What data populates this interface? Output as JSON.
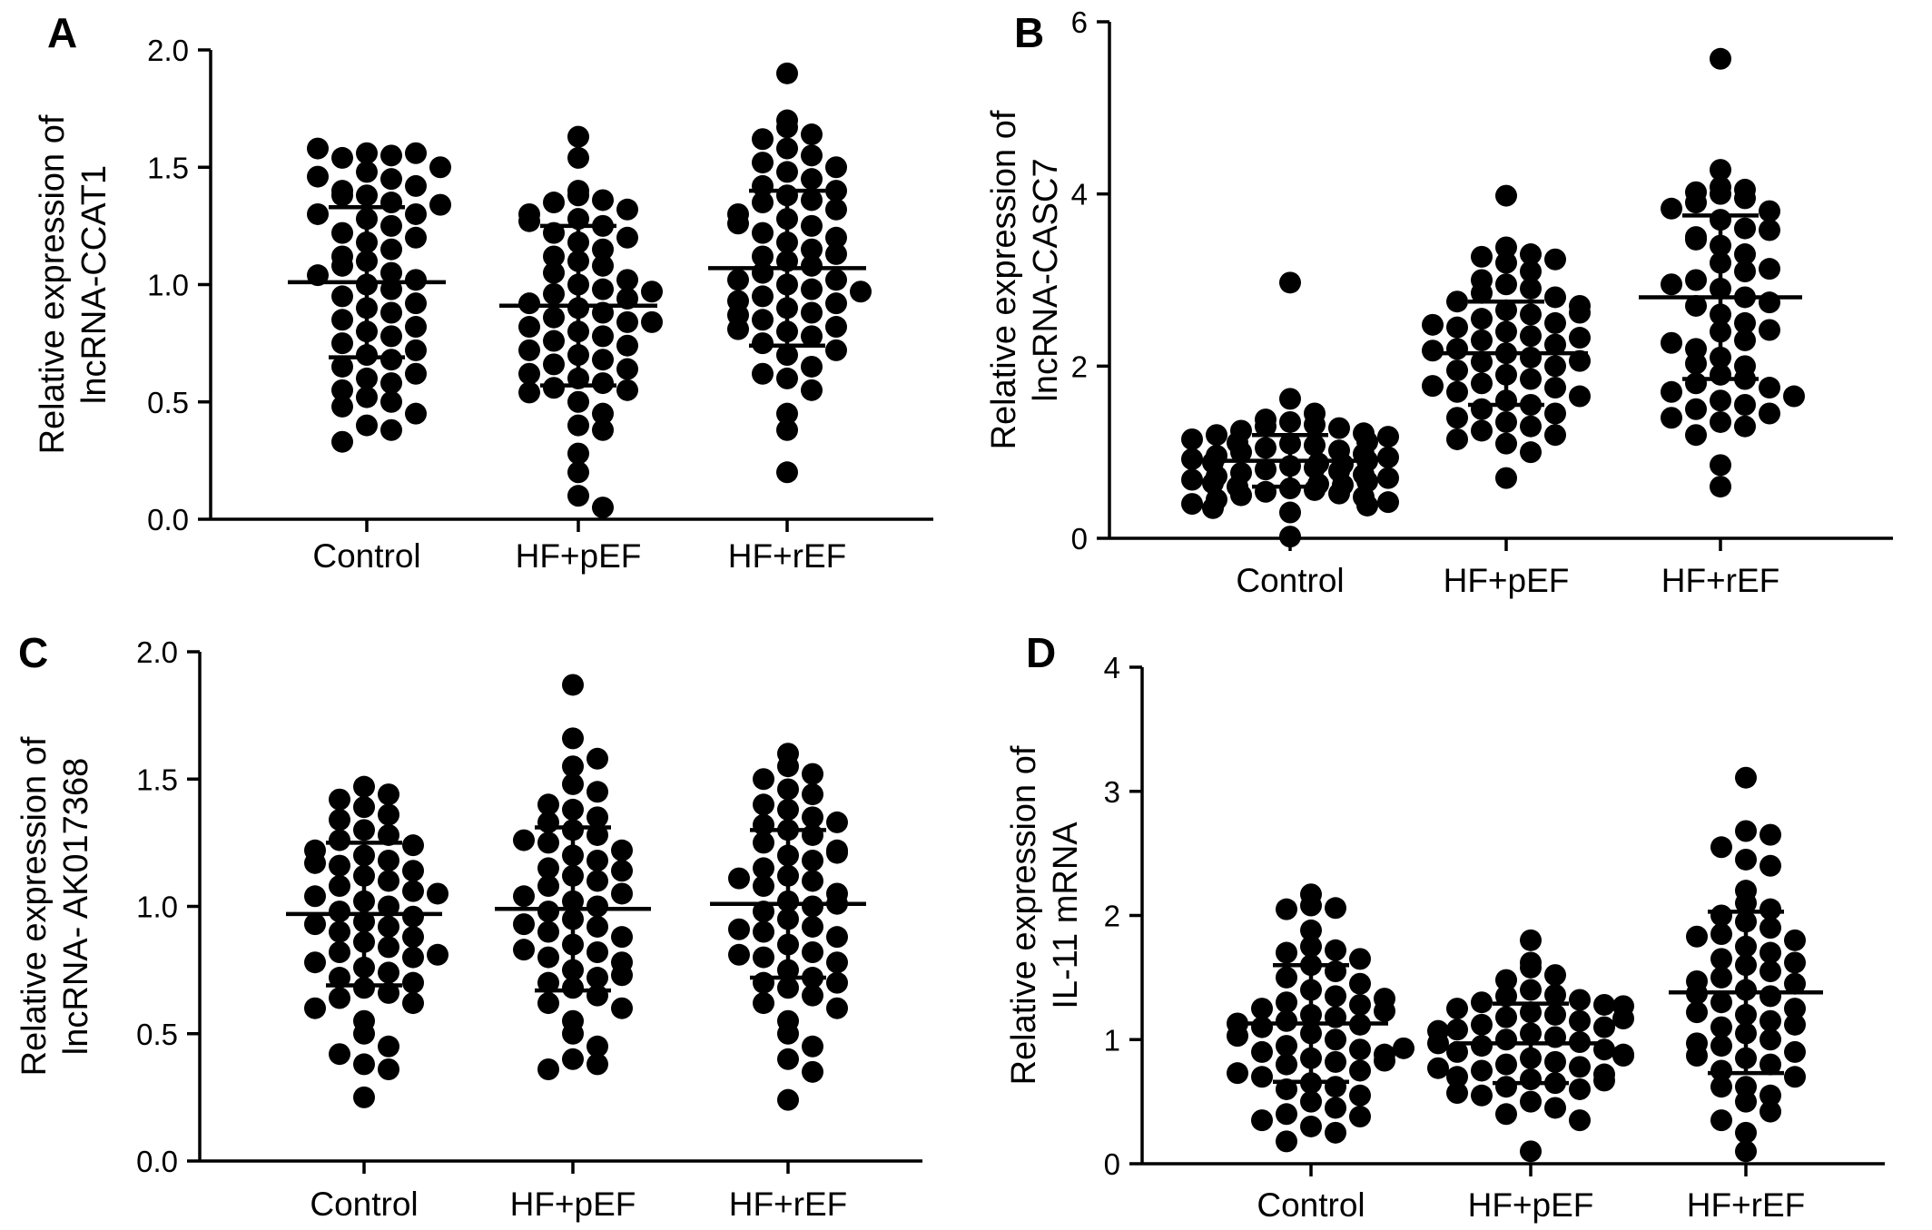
{
  "chart_data": [
    {
      "type": "scatter",
      "panel": "A",
      "ylabel": [
        "Relative expression of",
        "lncRNA-CCAT1"
      ],
      "xlabel": "",
      "categories": [
        "Control",
        "HF+pEF",
        "HF+rEF"
      ],
      "ylim": [
        0,
        2.0
      ],
      "yticks": [
        "0.0",
        "0.5",
        "1.0",
        "1.5",
        "2.0"
      ],
      "mean": [
        1.01,
        0.91,
        1.07
      ],
      "sd": [
        0.32,
        0.34,
        0.33
      ],
      "series": [
        {
          "values": [
            1.56,
            1.55,
            1.54,
            1.56,
            1.58,
            1.48,
            1.45,
            1.4,
            1.38,
            1.35,
            1.42,
            1.38,
            1.3,
            1.28,
            1.25,
            1.3,
            1.22,
            1.18,
            1.15,
            1.2,
            1.12,
            1.1,
            1.05,
            1.08,
            1.02,
            1.0,
            0.98,
            1.04,
            0.95,
            0.92,
            0.9,
            0.88,
            0.85,
            0.82,
            0.8,
            0.78,
            0.75,
            0.72,
            0.7,
            0.68,
            0.65,
            0.62,
            0.6,
            0.58,
            0.55,
            0.52,
            0.5,
            0.48,
            0.45,
            0.4,
            0.38,
            0.33,
            1.5,
            1.46,
            1.34
          ]
        },
        {
          "values": [
            1.63,
            1.54,
            1.4,
            1.38,
            1.36,
            1.35,
            1.32,
            1.3,
            1.28,
            1.25,
            1.22,
            1.2,
            1.18,
            1.15,
            1.12,
            1.1,
            1.08,
            1.05,
            1.02,
            1.0,
            0.98,
            0.96,
            0.94,
            0.92,
            0.9,
            0.88,
            0.86,
            0.84,
            0.82,
            0.8,
            0.78,
            0.76,
            0.74,
            0.72,
            0.7,
            0.68,
            0.66,
            0.64,
            0.6,
            0.58,
            0.56,
            0.55,
            0.54,
            0.5,
            0.45,
            0.4,
            0.38,
            0.28,
            0.2,
            0.1,
            0.05,
            1.27,
            0.62,
            0.84,
            0.97
          ]
        },
        {
          "values": [
            1.9,
            1.67,
            1.7,
            1.64,
            1.62,
            1.58,
            1.55,
            1.52,
            1.5,
            1.48,
            1.45,
            1.42,
            1.4,
            1.38,
            1.36,
            1.35,
            1.32,
            1.3,
            1.28,
            1.25,
            1.22,
            1.2,
            1.18,
            1.15,
            1.12,
            1.1,
            1.08,
            1.05,
            1.02,
            1.0,
            0.98,
            0.95,
            0.92,
            0.9,
            0.88,
            0.85,
            0.82,
            0.8,
            0.78,
            0.75,
            0.72,
            0.7,
            0.65,
            0.6,
            0.55,
            0.45,
            0.38,
            0.2,
            1.02,
            0.93,
            0.87,
            1.26,
            1.13,
            0.97,
            0.81,
            0.62
          ]
        }
      ]
    },
    {
      "type": "scatter",
      "panel": "B",
      "ylabel": [
        "Relative expression of",
        "lncRNA-CASC7"
      ],
      "xlabel": "",
      "categories": [
        "Control",
        "HF+pEF",
        "HF+rEF"
      ],
      "ylim": [
        0,
        6
      ],
      "yticks": [
        "0",
        "2",
        "4",
        "6"
      ],
      "mean": [
        0.9,
        2.15,
        2.8
      ],
      "sd": [
        0.3,
        0.6,
        0.95
      ],
      "series": [
        {
          "values": [
            2.97,
            1.62,
            1.45,
            1.38,
            1.35,
            1.32,
            1.3,
            1.28,
            1.25,
            1.22,
            1.2,
            1.18,
            1.15,
            1.12,
            1.1,
            1.08,
            1.05,
            1.02,
            1.0,
            0.98,
            0.96,
            0.94,
            0.92,
            0.9,
            0.88,
            0.86,
            0.84,
            0.82,
            0.8,
            0.78,
            0.76,
            0.74,
            0.72,
            0.7,
            0.68,
            0.66,
            0.64,
            0.62,
            0.6,
            0.58,
            0.56,
            0.54,
            0.52,
            0.5,
            0.48,
            0.45,
            0.42,
            0.4,
            0.38,
            0.35,
            0.3,
            0.02,
            1.11,
            0.87,
            0.63
          ]
        },
        {
          "values": [
            3.98,
            3.38,
            3.3,
            3.27,
            3.24,
            3.2,
            3.1,
            3.0,
            2.95,
            2.9,
            2.85,
            2.8,
            2.75,
            2.7,
            2.65,
            2.6,
            2.55,
            2.5,
            2.45,
            2.4,
            2.35,
            2.3,
            2.25,
            2.2,
            2.15,
            2.1,
            2.05,
            2.0,
            1.95,
            1.9,
            1.85,
            1.8,
            1.75,
            1.7,
            1.65,
            1.6,
            1.55,
            1.5,
            1.45,
            1.4,
            1.35,
            1.3,
            1.25,
            1.2,
            1.15,
            1.1,
            1.0,
            0.7,
            2.62,
            2.33,
            2.06,
            1.77,
            2.48,
            2.18
          ]
        },
        {
          "values": [
            5.57,
            4.28,
            4.08,
            4.05,
            4.02,
            4.0,
            3.95,
            3.9,
            3.8,
            3.7,
            3.6,
            3.5,
            3.4,
            3.3,
            3.2,
            3.1,
            3.0,
            2.9,
            2.8,
            2.7,
            2.6,
            2.5,
            2.4,
            2.3,
            2.2,
            2.1,
            2.0,
            1.9,
            1.85,
            1.8,
            1.75,
            1.7,
            1.65,
            1.6,
            1.55,
            1.5,
            1.45,
            1.4,
            1.35,
            1.3,
            1.2,
            0.85,
            0.6,
            3.83,
            3.47,
            3.13,
            2.74,
            2.42,
            2.03,
            3.58,
            2.95,
            2.27
          ]
        }
      ]
    },
    {
      "type": "scatter",
      "panel": "C",
      "ylabel": [
        "Relative expression of",
        "lncRNA- AK017368"
      ],
      "xlabel": "",
      "categories": [
        "Control",
        "HF+pEF",
        "HF+rEF"
      ],
      "ylim": [
        0,
        2.0
      ],
      "yticks": [
        "0.0",
        "0.5",
        "1.0",
        "1.5",
        "2.0"
      ],
      "mean": [
        0.97,
        0.99,
        1.01
      ],
      "sd": [
        0.28,
        0.32,
        0.29
      ],
      "series": [
        {
          "values": [
            1.47,
            1.44,
            1.42,
            1.39,
            1.36,
            1.34,
            1.3,
            1.28,
            1.26,
            1.24,
            1.22,
            1.2,
            1.18,
            1.16,
            1.14,
            1.12,
            1.1,
            1.08,
            1.06,
            1.04,
            1.02,
            1.0,
            0.98,
            0.96,
            0.94,
            0.92,
            0.9,
            0.88,
            0.86,
            0.84,
            0.82,
            0.8,
            0.78,
            0.76,
            0.74,
            0.72,
            0.7,
            0.68,
            0.66,
            0.64,
            0.62,
            0.6,
            0.55,
            0.5,
            0.45,
            0.42,
            0.38,
            0.36,
            0.25,
            1.17,
            1.05,
            0.93,
            0.81
          ]
        },
        {
          "values": [
            1.87,
            1.66,
            1.58,
            1.55,
            1.48,
            1.45,
            1.4,
            1.38,
            1.35,
            1.33,
            1.3,
            1.28,
            1.25,
            1.22,
            1.2,
            1.18,
            1.15,
            1.12,
            1.1,
            1.08,
            1.05,
            1.02,
            1.0,
            0.98,
            0.95,
            0.92,
            0.9,
            0.88,
            0.85,
            0.82,
            0.8,
            0.78,
            0.75,
            0.72,
            0.7,
            0.68,
            0.65,
            0.62,
            0.6,
            0.55,
            0.5,
            0.45,
            0.4,
            0.38,
            0.36,
            1.26,
            1.14,
            1.04,
            0.93,
            0.83,
            0.73
          ]
        },
        {
          "values": [
            1.6,
            1.55,
            1.52,
            1.5,
            1.46,
            1.44,
            1.4,
            1.38,
            1.35,
            1.32,
            1.3,
            1.28,
            1.25,
            1.22,
            1.2,
            1.18,
            1.15,
            1.12,
            1.1,
            1.08,
            1.05,
            1.02,
            1.0,
            0.98,
            0.95,
            0.92,
            0.9,
            0.88,
            0.85,
            0.82,
            0.8,
            0.78,
            0.75,
            0.72,
            0.7,
            0.68,
            0.65,
            0.62,
            0.6,
            0.55,
            0.5,
            0.45,
            0.4,
            0.35,
            0.24,
            1.33,
            1.21,
            1.11,
            1.01,
            0.91,
            0.81,
            0.7
          ]
        }
      ]
    },
    {
      "type": "scatter",
      "panel": "D",
      "ylabel": [
        "Relative expression of",
        "IL-11 mRNA"
      ],
      "xlabel": "",
      "categories": [
        "Control",
        "HF+pEF",
        "HF+rEF"
      ],
      "ylim": [
        0,
        4
      ],
      "yticks": [
        "0",
        "1",
        "2",
        "3",
        "4"
      ],
      "mean": [
        1.13,
        0.97,
        1.38
      ],
      "sd": [
        0.47,
        0.32,
        0.65
      ],
      "series": [
        {
          "values": [
            2.17,
            2.08,
            2.06,
            2.05,
            1.88,
            1.75,
            1.72,
            1.7,
            1.65,
            1.6,
            1.55,
            1.5,
            1.45,
            1.4,
            1.35,
            1.3,
            1.28,
            1.25,
            1.2,
            1.18,
            1.15,
            1.12,
            1.1,
            1.05,
            1.0,
            0.95,
            0.92,
            0.9,
            0.88,
            0.85,
            0.82,
            0.8,
            0.75,
            0.7,
            0.65,
            0.62,
            0.6,
            0.55,
            0.5,
            0.45,
            0.4,
            0.38,
            0.35,
            0.3,
            0.25,
            0.18,
            1.33,
            1.23,
            1.13,
            1.03,
            0.93,
            0.83,
            0.73
          ]
        },
        {
          "values": [
            1.8,
            1.62,
            1.58,
            1.52,
            1.48,
            1.4,
            1.36,
            1.35,
            1.32,
            1.3,
            1.28,
            1.25,
            1.22,
            1.2,
            1.18,
            1.15,
            1.12,
            1.1,
            1.08,
            1.05,
            1.02,
            1.0,
            0.98,
            0.95,
            0.92,
            0.9,
            0.88,
            0.85,
            0.82,
            0.8,
            0.78,
            0.75,
            0.72,
            0.7,
            0.68,
            0.65,
            0.62,
            0.6,
            0.55,
            0.5,
            0.45,
            0.4,
            0.35,
            0.1,
            1.27,
            1.17,
            1.07,
            0.97,
            0.87,
            0.77,
            0.67,
            0.57
          ]
        },
        {
          "values": [
            3.11,
            2.68,
            2.65,
            2.55,
            2.45,
            2.4,
            2.2,
            2.1,
            2.05,
            2.0,
            1.95,
            1.9,
            1.85,
            1.8,
            1.75,
            1.7,
            1.65,
            1.6,
            1.55,
            1.5,
            1.45,
            1.4,
            1.35,
            1.3,
            1.25,
            1.2,
            1.15,
            1.1,
            1.05,
            1.0,
            0.95,
            0.9,
            0.85,
            0.8,
            0.75,
            0.7,
            0.62,
            0.55,
            0.5,
            0.42,
            0.35,
            0.25,
            0.1,
            1.62,
            1.37,
            1.12,
            0.87,
            1.47,
            1.22,
            0.97,
            1.83,
            0.62
          ]
        }
      ]
    }
  ]
}
